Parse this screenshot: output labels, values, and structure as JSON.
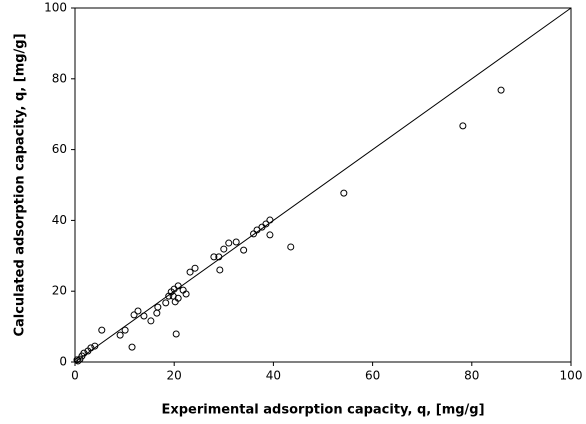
{
  "chart_data": {
    "type": "scatter",
    "x_label": "Experimental adsorption capacity, q, [mg/g]",
    "y_label": "Calculated adsorption capacity, q, [mg/g]",
    "xlim": [
      0,
      100
    ],
    "ylim": [
      0,
      100
    ],
    "xticks": [
      0,
      20,
      40,
      60,
      80,
      100
    ],
    "yticks": [
      0,
      20,
      40,
      60,
      80,
      100
    ],
    "grid": false,
    "marker_color": "#000000",
    "line_color": "#000000",
    "series": [
      {
        "name": "q",
        "color": "#000000",
        "x": [
          85.9,
          78.2,
          54.2,
          43.5,
          39.3,
          38.5,
          37.7,
          36.7,
          36,
          39.3,
          34,
          32.5,
          31,
          30,
          29,
          28,
          29.2,
          24.2,
          23.2,
          21.8,
          20.8,
          20,
          19.8,
          19.4,
          18.9,
          20.2,
          20.8,
          22.4,
          18.3,
          16.7,
          16.5,
          15.3,
          13.9,
          12.7,
          11.9,
          11.5,
          20.4,
          10.1,
          9.1,
          5.4,
          4,
          3.2,
          2.6,
          1.8,
          1.4,
          1,
          0.6,
          0.4
        ],
        "values": [
          76.8,
          66.7,
          47.7,
          32.5,
          40.1,
          39,
          38.1,
          37.3,
          36.2,
          35.9,
          31.6,
          33.9,
          33.6,
          31.9,
          29.7,
          29.7,
          26,
          26.5,
          25.4,
          20.3,
          21.5,
          20.6,
          18.6,
          19.8,
          18.6,
          17,
          18,
          19.2,
          16.7,
          15.5,
          13.8,
          11.6,
          13,
          14.4,
          13.3,
          4.2,
          7.9,
          9,
          7.6,
          9,
          4.5,
          4,
          3.1,
          2.5,
          1.7,
          0.8,
          0.3,
          0.6
        ]
      }
    ]
  }
}
